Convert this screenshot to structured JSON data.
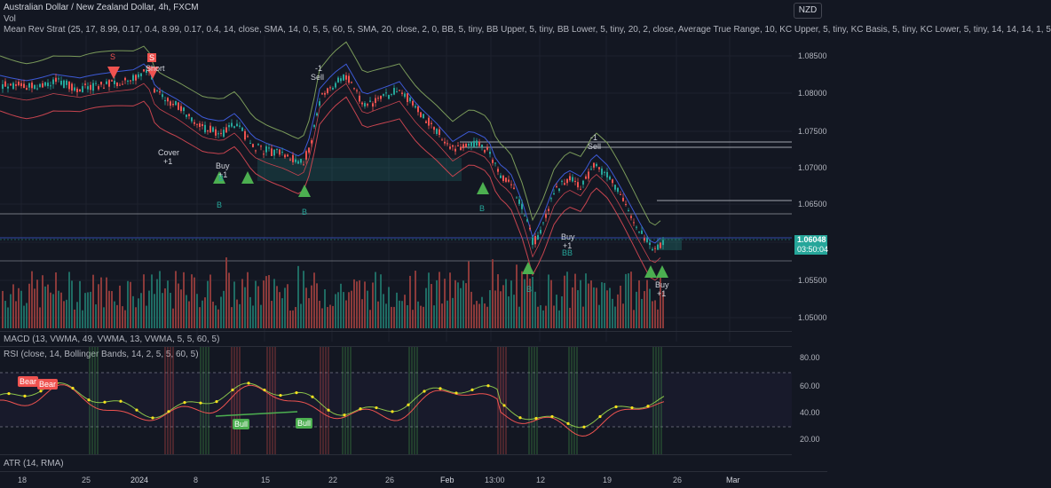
{
  "header": {
    "symbol_title": "Australian Dollar / New Zealand Dollar, 4h, FXCM",
    "vol_label": "Vol",
    "strategy_label": "Mean Rev Strat (25, 17, 8.99, 0.17, 0.4, 8.99, 0.17, 0.4, 14, close, SMA, 14, 0, 5, 5, 60, 5, SMA, 20, close, 2, 0, BB, 5, tiny, BB Upper, 5, tiny, BB Lower, 5, tiny, 20, 2, close, Average True Range, 10, KC Upper, 5, tiny, KC Basis, 5, tiny, KC Lower, 5, tiny, 14, 14, 14, 1, 5",
    "currency_button": "NZD"
  },
  "price_axis": {
    "ticks": [
      "1.08500",
      "1.08000",
      "1.07500",
      "1.07000",
      "1.06500",
      "1.05500",
      "1.05000"
    ],
    "last_price": "1.06048",
    "countdown": "03:50:04"
  },
  "rsi_axis": {
    "ticks": [
      "80.00",
      "60.00",
      "40.00",
      "20.00"
    ]
  },
  "panes": {
    "macd_label": "MACD (13, VWMA, 49, VWMA, 13, VWMA, 5, 5, 60, 5)",
    "rsi_label": "RSI (close, 14, Bollinger Bands, 14, 2, 5, 5, 60, 5)",
    "atr_label": "ATR (14, RMA)"
  },
  "time_axis": [
    "18",
    "25",
    "2024",
    "8",
    "15",
    "22",
    "26",
    "Feb",
    "13:00",
    "12",
    "19",
    "26",
    "Mar"
  ],
  "signals": {
    "short": "Short",
    "s1": "S",
    "s2": "S",
    "sell1_num": "-1",
    "sell1": "Sell",
    "cover": "Cover",
    "cover_num": "+1",
    "buy1": "Buy",
    "buy1_num": "+1",
    "b_labels": [
      "B",
      "B",
      "B",
      "B",
      "B",
      "B",
      "B"
    ],
    "sell2_num": "-1",
    "sell2": "Sell",
    "buy2": "Buy",
    "buy2_num": "+1",
    "buy3": "Buy",
    "buy3_num": "+1",
    "bear1": "Bear",
    "bear2": "Bear",
    "bull1": "Bull",
    "bull2": "Bull"
  },
  "colors": {
    "background": "#131722",
    "up": "#26a69a",
    "down": "#ef5350",
    "bb_upper": "#7a9a5a",
    "basis": "#3d5ad6",
    "lower": "#c7444f",
    "rsi_line": "#8bc34a",
    "signal": "#f7e11d"
  }
}
